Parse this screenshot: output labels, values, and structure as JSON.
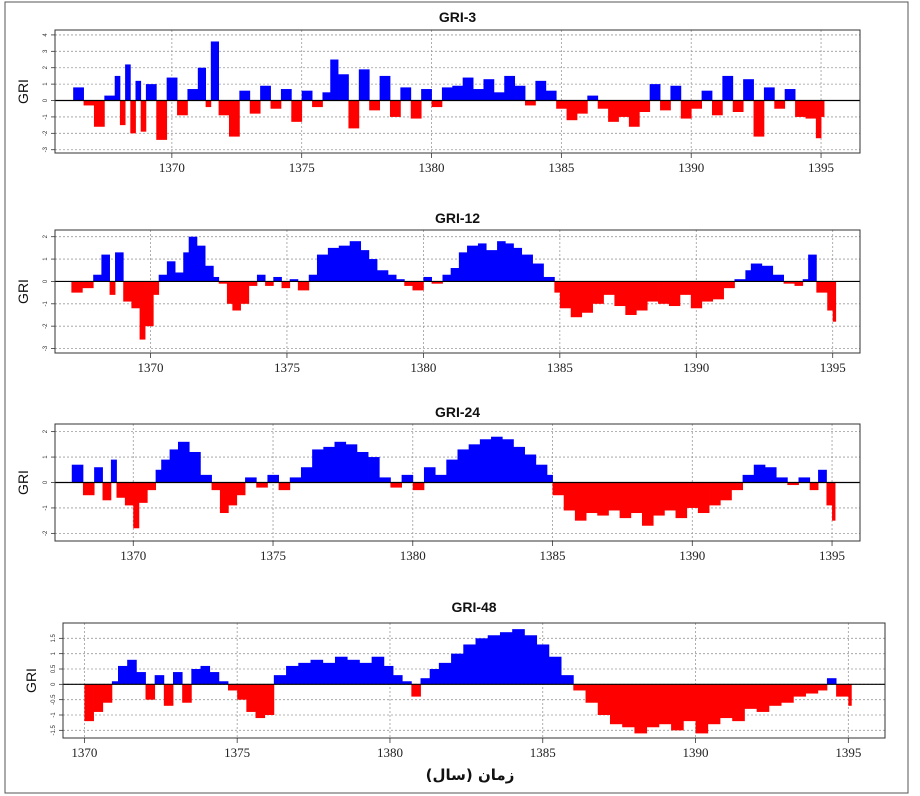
{
  "chart_data": [
    {
      "type": "area",
      "title": "GRI-3",
      "ylabel": "GRI",
      "xlim": [
        1365.5,
        1396.5
      ],
      "ylim": [
        -3.2,
        4.3
      ],
      "yticks": [
        -3,
        -2,
        -1,
        0,
        1,
        2,
        3,
        4
      ],
      "xticks": [
        1370,
        1375,
        1380,
        1385,
        1390,
        1395
      ],
      "grid": true,
      "positive_color": "#0000ff",
      "negative_color": "#ff0000",
      "x": [
        1366.2,
        1366.6,
        1367.0,
        1367.4,
        1367.8,
        1368.0,
        1368.2,
        1368.4,
        1368.6,
        1368.8,
        1369.0,
        1369.4,
        1369.8,
        1370.2,
        1370.6,
        1371.0,
        1371.3,
        1371.5,
        1371.8,
        1372.2,
        1372.6,
        1373.0,
        1373.4,
        1373.8,
        1374.2,
        1374.6,
        1375.0,
        1375.4,
        1375.8,
        1376.1,
        1376.4,
        1376.8,
        1377.2,
        1377.6,
        1378.0,
        1378.4,
        1378.8,
        1379.2,
        1379.6,
        1380.0,
        1380.4,
        1380.8,
        1381.2,
        1381.6,
        1382.0,
        1382.4,
        1382.8,
        1383.2,
        1383.6,
        1384.0,
        1384.4,
        1384.8,
        1385.2,
        1385.6,
        1386.0,
        1386.4,
        1386.8,
        1387.2,
        1387.6,
        1388.0,
        1388.4,
        1388.8,
        1389.2,
        1389.6,
        1390.0,
        1390.4,
        1390.8,
        1391.2,
        1391.6,
        1392.0,
        1392.4,
        1392.8,
        1393.2,
        1393.6,
        1394.0,
        1394.4,
        1394.8,
        1395.0
      ],
      "y": [
        0.8,
        -0.3,
        -1.6,
        0.3,
        1.5,
        -1.5,
        2.2,
        -2.0,
        1.2,
        -1.9,
        1.0,
        -2.4,
        1.4,
        -0.9,
        0.7,
        2.0,
        -0.4,
        3.6,
        -0.9,
        -2.2,
        0.6,
        -0.8,
        0.9,
        -0.5,
        0.7,
        -1.3,
        0.6,
        -0.4,
        0.5,
        2.5,
        1.6,
        -1.7,
        1.9,
        -0.6,
        1.5,
        -1.0,
        0.8,
        -1.1,
        0.7,
        -0.4,
        0.8,
        0.9,
        1.4,
        0.7,
        1.3,
        0.5,
        1.5,
        0.9,
        -0.3,
        1.2,
        0.6,
        -0.5,
        -1.2,
        -0.8,
        0.3,
        -0.5,
        -1.3,
        -1.0,
        -1.6,
        -0.7,
        1.0,
        -0.6,
        0.9,
        -1.1,
        -0.5,
        0.6,
        -0.9,
        1.5,
        -0.7,
        1.3,
        -2.2,
        0.8,
        -0.5,
        0.7,
        -1.0,
        -1.1,
        -2.3,
        -1.0
      ]
    },
    {
      "type": "area",
      "title": "GRI-12",
      "ylabel": "GRI",
      "xlim": [
        1366.5,
        1396.0
      ],
      "ylim": [
        -3.2,
        2.3
      ],
      "yticks": [
        -3,
        -2,
        -1,
        0,
        1,
        2
      ],
      "xticks": [
        1370,
        1375,
        1380,
        1385,
        1390,
        1395
      ],
      "grid": true,
      "positive_color": "#0000ff",
      "negative_color": "#ff0000",
      "x": [
        1367.1,
        1367.5,
        1367.9,
        1368.2,
        1368.5,
        1368.7,
        1369.0,
        1369.3,
        1369.6,
        1369.8,
        1370.1,
        1370.3,
        1370.6,
        1370.9,
        1371.2,
        1371.4,
        1371.7,
        1372.0,
        1372.3,
        1372.5,
        1372.8,
        1373.0,
        1373.3,
        1373.6,
        1373.9,
        1374.2,
        1374.5,
        1374.8,
        1375.1,
        1375.4,
        1375.8,
        1376.1,
        1376.5,
        1376.9,
        1377.3,
        1377.7,
        1378.0,
        1378.3,
        1378.7,
        1379.0,
        1379.3,
        1379.6,
        1380.0,
        1380.3,
        1380.7,
        1381.0,
        1381.3,
        1381.6,
        1382.0,
        1382.3,
        1382.7,
        1383.0,
        1383.3,
        1383.6,
        1384.0,
        1384.4,
        1384.8,
        1385.0,
        1385.4,
        1385.8,
        1386.2,
        1386.6,
        1387.0,
        1387.4,
        1387.8,
        1388.2,
        1388.6,
        1389.0,
        1389.4,
        1389.8,
        1390.2,
        1390.6,
        1391.0,
        1391.4,
        1391.8,
        1392.0,
        1392.4,
        1392.8,
        1393.2,
        1393.6,
        1393.9,
        1394.1,
        1394.4,
        1394.8,
        1395.0
      ],
      "y": [
        -0.5,
        -0.3,
        0.3,
        1.2,
        -0.6,
        1.3,
        -0.9,
        -1.2,
        -2.6,
        -2.0,
        -0.6,
        0.3,
        0.9,
        0.4,
        1.3,
        2.0,
        1.6,
        0.7,
        0.2,
        -0.1,
        -1.0,
        -1.3,
        -1.0,
        -0.2,
        0.3,
        -0.2,
        0.2,
        -0.3,
        0.1,
        -0.4,
        0.3,
        1.2,
        1.5,
        1.6,
        1.8,
        1.4,
        1.0,
        0.5,
        0.3,
        0.1,
        -0.2,
        -0.4,
        0.2,
        -0.1,
        0.3,
        0.6,
        1.3,
        1.6,
        1.7,
        1.4,
        1.8,
        1.7,
        1.5,
        1.2,
        0.8,
        0.2,
        -0.5,
        -1.2,
        -1.6,
        -1.4,
        -1.0,
        -0.6,
        -1.1,
        -1.5,
        -1.3,
        -0.9,
        -1.0,
        -1.1,
        -0.6,
        -1.2,
        -0.9,
        -0.8,
        -0.3,
        0.1,
        0.5,
        0.8,
        0.7,
        0.3,
        -0.1,
        -0.2,
        0.1,
        1.2,
        -0.5,
        -1.3,
        -1.8
      ]
    },
    {
      "type": "area",
      "title": "GRI-24",
      "ylabel": "GRI",
      "xlim": [
        1367.2,
        1396.0
      ],
      "ylim": [
        -2.3,
        2.3
      ],
      "yticks": [
        -2,
        -1,
        0,
        1,
        2
      ],
      "xticks": [
        1370,
        1375,
        1380,
        1385,
        1390,
        1395
      ],
      "grid": true,
      "positive_color": "#0000ff",
      "negative_color": "#ff0000",
      "x": [
        1367.8,
        1368.2,
        1368.6,
        1368.9,
        1369.2,
        1369.4,
        1369.7,
        1370.0,
        1370.2,
        1370.5,
        1370.8,
        1371.0,
        1371.3,
        1371.6,
        1372.0,
        1372.4,
        1372.8,
        1373.1,
        1373.4,
        1373.7,
        1374.0,
        1374.4,
        1374.8,
        1375.2,
        1375.6,
        1376.0,
        1376.4,
        1376.8,
        1377.2,
        1377.6,
        1378.0,
        1378.4,
        1378.8,
        1379.2,
        1379.6,
        1380.0,
        1380.4,
        1380.8,
        1381.2,
        1381.6,
        1382.0,
        1382.4,
        1382.8,
        1383.2,
        1383.6,
        1384.0,
        1384.4,
        1384.8,
        1385.0,
        1385.4,
        1385.8,
        1386.2,
        1386.6,
        1387.0,
        1387.4,
        1387.8,
        1388.2,
        1388.6,
        1389.0,
        1389.4,
        1389.8,
        1390.2,
        1390.6,
        1391.0,
        1391.4,
        1391.8,
        1392.2,
        1392.6,
        1393.0,
        1393.4,
        1393.8,
        1394.2,
        1394.5,
        1394.8,
        1395.0
      ],
      "y": [
        0.7,
        -0.5,
        0.6,
        -0.7,
        0.9,
        -0.6,
        -0.9,
        -1.8,
        -0.8,
        -0.3,
        0.5,
        0.9,
        1.3,
        1.6,
        1.2,
        0.3,
        -0.3,
        -1.2,
        -0.9,
        -0.5,
        0.2,
        -0.2,
        0.3,
        -0.3,
        0.2,
        0.6,
        1.3,
        1.4,
        1.6,
        1.5,
        1.2,
        1.0,
        0.2,
        -0.2,
        0.3,
        -0.3,
        0.6,
        0.3,
        0.9,
        1.3,
        1.5,
        1.7,
        1.8,
        1.7,
        1.4,
        1.1,
        0.7,
        0.3,
        -0.5,
        -1.1,
        -1.5,
        -1.2,
        -1.3,
        -1.1,
        -1.4,
        -1.2,
        -1.7,
        -1.3,
        -1.1,
        -1.4,
        -1.0,
        -1.2,
        -0.9,
        -0.7,
        -0.3,
        0.3,
        0.7,
        0.6,
        0.2,
        -0.1,
        0.2,
        -0.3,
        0.5,
        -0.9,
        -1.5
      ]
    },
    {
      "type": "area",
      "title": "GRI-48",
      "ylabel": "GRI",
      "xlim": [
        1369.3,
        1396.2
      ],
      "ylim": [
        -1.75,
        2.0
      ],
      "yticks": [
        -1.5,
        -1.0,
        -0.5,
        0.0,
        0.5,
        1.0,
        1.5
      ],
      "xticks": [
        1370,
        1375,
        1380,
        1385,
        1390,
        1395
      ],
      "grid": true,
      "positive_color": "#0000ff",
      "negative_color": "#ff0000",
      "x": [
        1370.0,
        1370.3,
        1370.6,
        1370.9,
        1371.1,
        1371.4,
        1371.7,
        1372.0,
        1372.3,
        1372.6,
        1372.9,
        1373.2,
        1373.5,
        1373.8,
        1374.1,
        1374.4,
        1374.7,
        1375.0,
        1375.3,
        1375.6,
        1375.9,
        1376.2,
        1376.6,
        1377.0,
        1377.4,
        1377.8,
        1378.2,
        1378.6,
        1379.0,
        1379.4,
        1379.8,
        1380.1,
        1380.4,
        1380.7,
        1381.0,
        1381.3,
        1381.6,
        1382.0,
        1382.4,
        1382.8,
        1383.2,
        1383.6,
        1384.0,
        1384.4,
        1384.8,
        1385.2,
        1385.6,
        1386.0,
        1386.4,
        1386.8,
        1387.2,
        1387.6,
        1388.0,
        1388.4,
        1388.8,
        1389.2,
        1389.6,
        1390.0,
        1390.4,
        1390.8,
        1391.2,
        1391.6,
        1392.0,
        1392.4,
        1392.8,
        1393.2,
        1393.6,
        1394.0,
        1394.3,
        1394.6,
        1395.0
      ],
      "y": [
        -1.2,
        -0.9,
        -0.6,
        0.1,
        0.6,
        0.8,
        0.4,
        -0.5,
        0.3,
        -0.7,
        0.4,
        -0.6,
        0.5,
        0.6,
        0.4,
        0.1,
        -0.2,
        -0.5,
        -0.9,
        -1.1,
        -1.0,
        0.3,
        0.6,
        0.7,
        0.8,
        0.7,
        0.9,
        0.8,
        0.7,
        0.9,
        0.6,
        0.3,
        0.1,
        -0.4,
        0.2,
        0.5,
        0.7,
        1.0,
        1.3,
        1.5,
        1.6,
        1.7,
        1.8,
        1.6,
        1.3,
        0.9,
        0.3,
        -0.2,
        -0.6,
        -1.0,
        -1.3,
        -1.4,
        -1.6,
        -1.4,
        -1.3,
        -1.5,
        -1.2,
        -1.6,
        -1.3,
        -1.1,
        -1.2,
        -0.8,
        -0.9,
        -0.7,
        -0.6,
        -0.4,
        -0.3,
        -0.2,
        0.2,
        -0.4,
        -0.7
      ]
    }
  ],
  "xlabel": "زمان (سال)"
}
